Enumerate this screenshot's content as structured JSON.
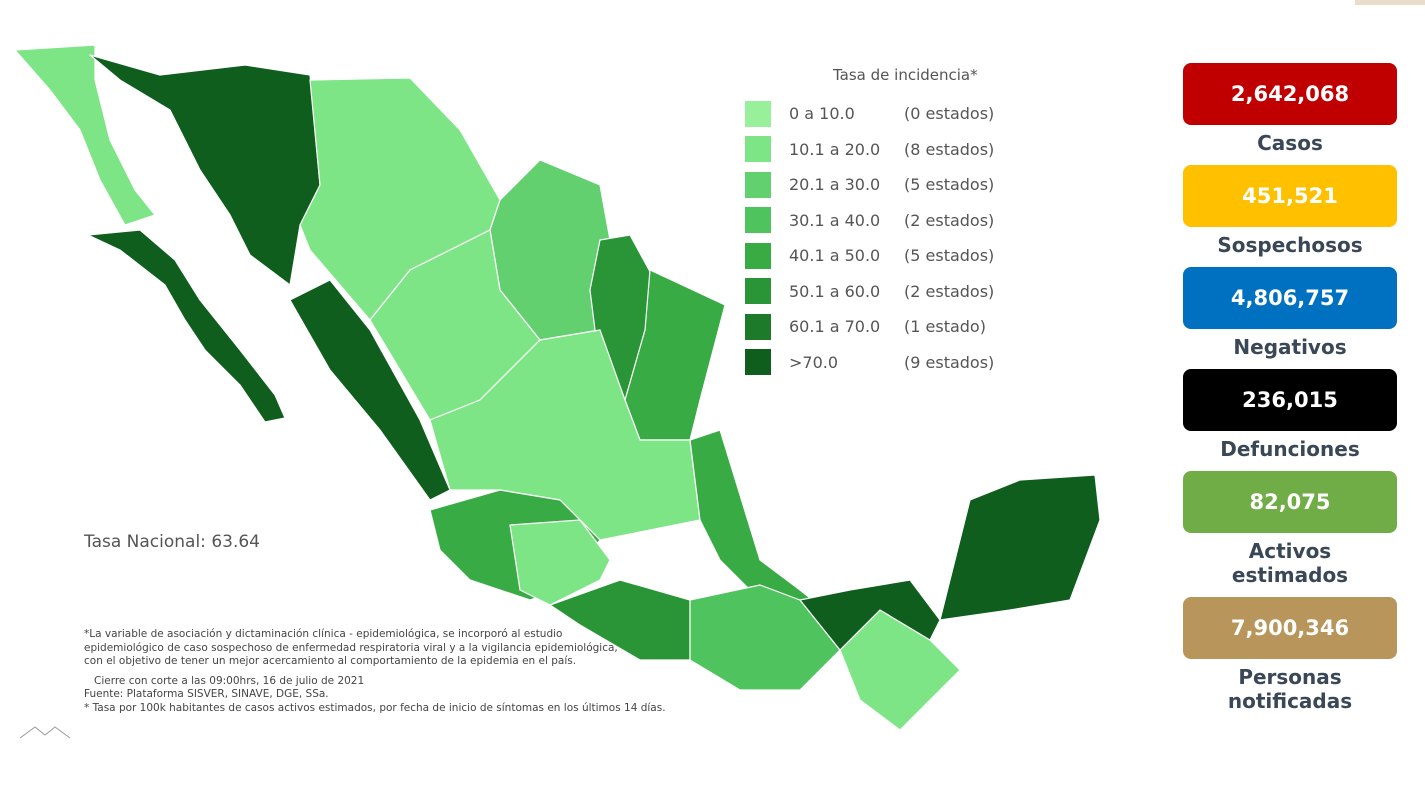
{
  "legend": {
    "title": "Tasa de incidencia*",
    "items": [
      {
        "range": "0 a 10.0",
        "count": "(0 estados)",
        "color": "#98f19a"
      },
      {
        "range": "10.1 a 20.0",
        "count": "(8 estados)",
        "color": "#7ee587"
      },
      {
        "range": "20.1 a 30.0",
        "count": "(5 estados)",
        "color": "#62d06f"
      },
      {
        "range": "30.1 a 40.0",
        "count": "(2 estados)",
        "color": "#4ec35e"
      },
      {
        "range": "40.1 a 50.0",
        "count": "(5 estados)",
        "color": "#39ab45"
      },
      {
        "range": "50.1 a 60.0",
        "count": "(2 estados)",
        "color": "#2a9537"
      },
      {
        "range": "60.1 a 70.0",
        "count": "(1 estado)",
        "color": "#1e7a2b"
      },
      {
        "range": ">70.0",
        "count": "(9 estados)",
        "color": "#0f5e1d"
      }
    ]
  },
  "national_rate": "Tasa Nacional: 63.64",
  "notes": [
    "*La variable de asociación y dictaminación clínica - epidemiológica, se incorporó al estudio",
    "epidemiológico de caso sospechoso de enfermedad respiratoria viral y a la vigilancia epidemiológica,",
    "con el objetivo de tener un mejor acercamiento al comportamiento de la epidemia en el país.",
    "Cierre con corte a las 09:00hrs, 16 de julio de 2021",
    "Fuente: Plataforma SISVER, SINAVE, DGE, SSa.",
    "* Tasa por 100k habitantes de casos activos estimados, por fecha de inicio de síntomas en los últimos 14 días."
  ],
  "stats": [
    {
      "value": "2,642,068",
      "label": "Casos",
      "color": "#c00000"
    },
    {
      "value": "451,521",
      "label": "Sospechosos",
      "color": "#ffc000"
    },
    {
      "value": "4,806,757",
      "label": "Negativos",
      "color": "#0070c0"
    },
    {
      "value": "236,015",
      "label": "Defunciones",
      "color": "#000000"
    },
    {
      "value": "82,075",
      "label": "Activos estimados",
      "color": "#70ad47"
    },
    {
      "value": "7,900,346",
      "label": "Personas notificadas",
      "color": "#b8955a"
    }
  ]
}
